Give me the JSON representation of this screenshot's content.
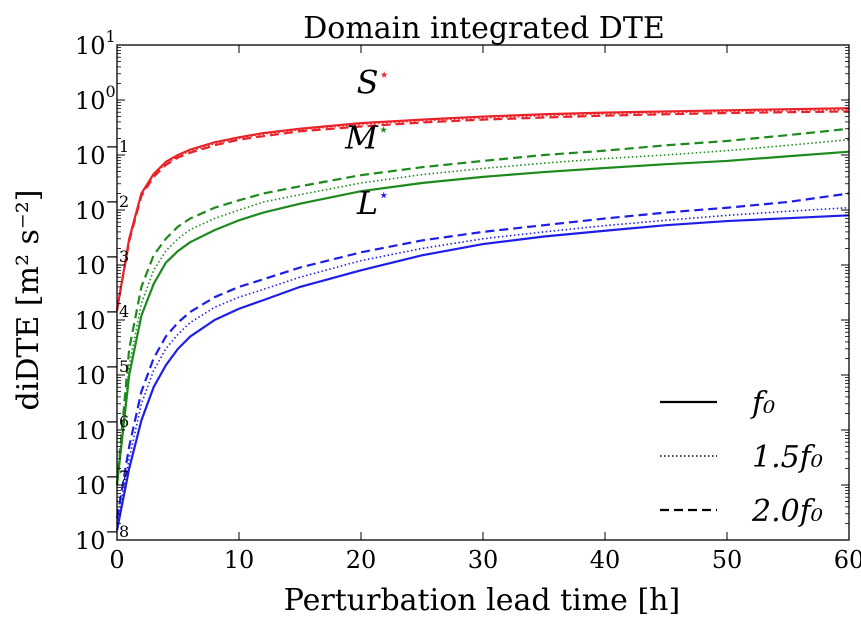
{
  "chart_data": {
    "type": "line",
    "title": "Domain integrated DTE",
    "xlabel": "Perturbation lead time [h]",
    "ylabel": "diDTE [m² s⁻²]",
    "yscale": "log",
    "xlim": [
      0,
      60
    ],
    "ylim": [
      1e-08,
      10
    ],
    "x_ticks": [
      0,
      10,
      20,
      30,
      40,
      50,
      60
    ],
    "y_ticks": [
      {
        "exp": -8,
        "label": "10",
        "sup": "−8"
      },
      {
        "exp": -7,
        "label": "10",
        "sup": "−7"
      },
      {
        "exp": -6,
        "label": "10",
        "sup": "−6"
      },
      {
        "exp": -5,
        "label": "10",
        "sup": "−5"
      },
      {
        "exp": -4,
        "label": "10",
        "sup": "−4"
      },
      {
        "exp": -3,
        "label": "10",
        "sup": "−3"
      },
      {
        "exp": -2,
        "label": "10",
        "sup": "−2"
      },
      {
        "exp": -1,
        "label": "10",
        "sup": "−1"
      },
      {
        "exp": 0,
        "label": "10",
        "sup": "0"
      },
      {
        "exp": 1,
        "label": "10",
        "sup": "1"
      }
    ],
    "grid": false,
    "legend_position": "bottom-right",
    "legend": [
      {
        "label": "f₀",
        "style": "solid"
      },
      {
        "label": "1.5f₀",
        "style": "dotted"
      },
      {
        "label": "2.0f₀",
        "style": "dashed"
      }
    ],
    "annotations": [
      {
        "text": "S",
        "sup": "⋆",
        "color": "#e8232a",
        "x": 21,
        "y": 1.3
      },
      {
        "text": "M",
        "sup": "⋆",
        "color": "#1e8a1e",
        "x": 20.5,
        "y": 0.13
      },
      {
        "text": "L",
        "sup": "⋆",
        "color": "#1e1ee8",
        "x": 21,
        "y": 0.0085
      }
    ],
    "colors": {
      "S": "#e8232a",
      "M": "#1e8a1e",
      "L": "#1e1ee8"
    },
    "x": [
      0,
      1,
      2,
      3,
      4,
      5,
      6,
      8,
      10,
      12,
      15,
      20,
      25,
      30,
      35,
      40,
      45,
      50,
      55,
      60
    ],
    "series": [
      {
        "group": "S",
        "style": "solid",
        "color": "#e8232a",
        "values": [
          0.00015,
          0.003,
          0.02,
          0.045,
          0.075,
          0.1,
          0.125,
          0.17,
          0.21,
          0.25,
          0.3,
          0.38,
          0.44,
          0.5,
          0.55,
          0.59,
          0.62,
          0.65,
          0.68,
          0.71
        ]
      },
      {
        "group": "S",
        "style": "dotted",
        "color": "#e8232a",
        "values": [
          0.00015,
          0.0028,
          0.019,
          0.043,
          0.07,
          0.095,
          0.118,
          0.16,
          0.2,
          0.24,
          0.29,
          0.36,
          0.42,
          0.47,
          0.52,
          0.56,
          0.59,
          0.62,
          0.64,
          0.66
        ]
      },
      {
        "group": "S",
        "style": "dashed",
        "color": "#e8232a",
        "values": [
          0.00015,
          0.0027,
          0.018,
          0.04,
          0.066,
          0.09,
          0.11,
          0.15,
          0.19,
          0.22,
          0.27,
          0.33,
          0.39,
          0.44,
          0.48,
          0.52,
          0.55,
          0.58,
          0.6,
          0.62
        ]
      },
      {
        "group": "M",
        "style": "solid",
        "color": "#1e8a1e",
        "values": [
          1e-07,
          1e-05,
          0.00012,
          0.00045,
          0.0011,
          0.0018,
          0.0026,
          0.0043,
          0.0065,
          0.009,
          0.013,
          0.022,
          0.031,
          0.04,
          0.049,
          0.058,
          0.068,
          0.078,
          0.095,
          0.115
        ]
      },
      {
        "group": "M",
        "style": "dotted",
        "color": "#1e8a1e",
        "values": [
          1e-07,
          1.5e-05,
          0.0002,
          0.0008,
          0.0018,
          0.003,
          0.0044,
          0.007,
          0.01,
          0.014,
          0.019,
          0.031,
          0.044,
          0.057,
          0.071,
          0.086,
          0.1,
          0.12,
          0.15,
          0.19
        ]
      },
      {
        "group": "M",
        "style": "dashed",
        "color": "#1e8a1e",
        "values": [
          1e-07,
          3e-05,
          0.0004,
          0.0015,
          0.003,
          0.005,
          0.007,
          0.011,
          0.015,
          0.02,
          0.027,
          0.043,
          0.06,
          0.078,
          0.1,
          0.12,
          0.15,
          0.18,
          0.23,
          0.3
        ]
      },
      {
        "group": "L",
        "style": "solid",
        "color": "#1e1ee8",
        "values": [
          1.5e-08,
          2e-07,
          1.5e-06,
          6e-06,
          1.5e-05,
          3e-05,
          5e-05,
          0.0001,
          0.00016,
          0.00023,
          0.0004,
          0.0008,
          0.0015,
          0.0024,
          0.0033,
          0.0042,
          0.0053,
          0.0063,
          0.0071,
          0.008
        ]
      },
      {
        "group": "L",
        "style": "dotted",
        "color": "#1e1ee8",
        "values": [
          2e-08,
          3e-07,
          3e-06,
          1.2e-05,
          3e-05,
          5.5e-05,
          9e-05,
          0.00017,
          0.00026,
          0.00036,
          0.0006,
          0.0012,
          0.002,
          0.003,
          0.004,
          0.0052,
          0.0065,
          0.008,
          0.0095,
          0.011
        ]
      },
      {
        "group": "L",
        "style": "dashed",
        "color": "#1e1ee8",
        "values": [
          2.5e-08,
          5e-07,
          5e-06,
          2e-05,
          5e-05,
          9e-05,
          0.00014,
          0.00026,
          0.0004,
          0.00055,
          0.0009,
          0.0017,
          0.0028,
          0.004,
          0.0053,
          0.007,
          0.009,
          0.011,
          0.014,
          0.02
        ]
      }
    ]
  }
}
